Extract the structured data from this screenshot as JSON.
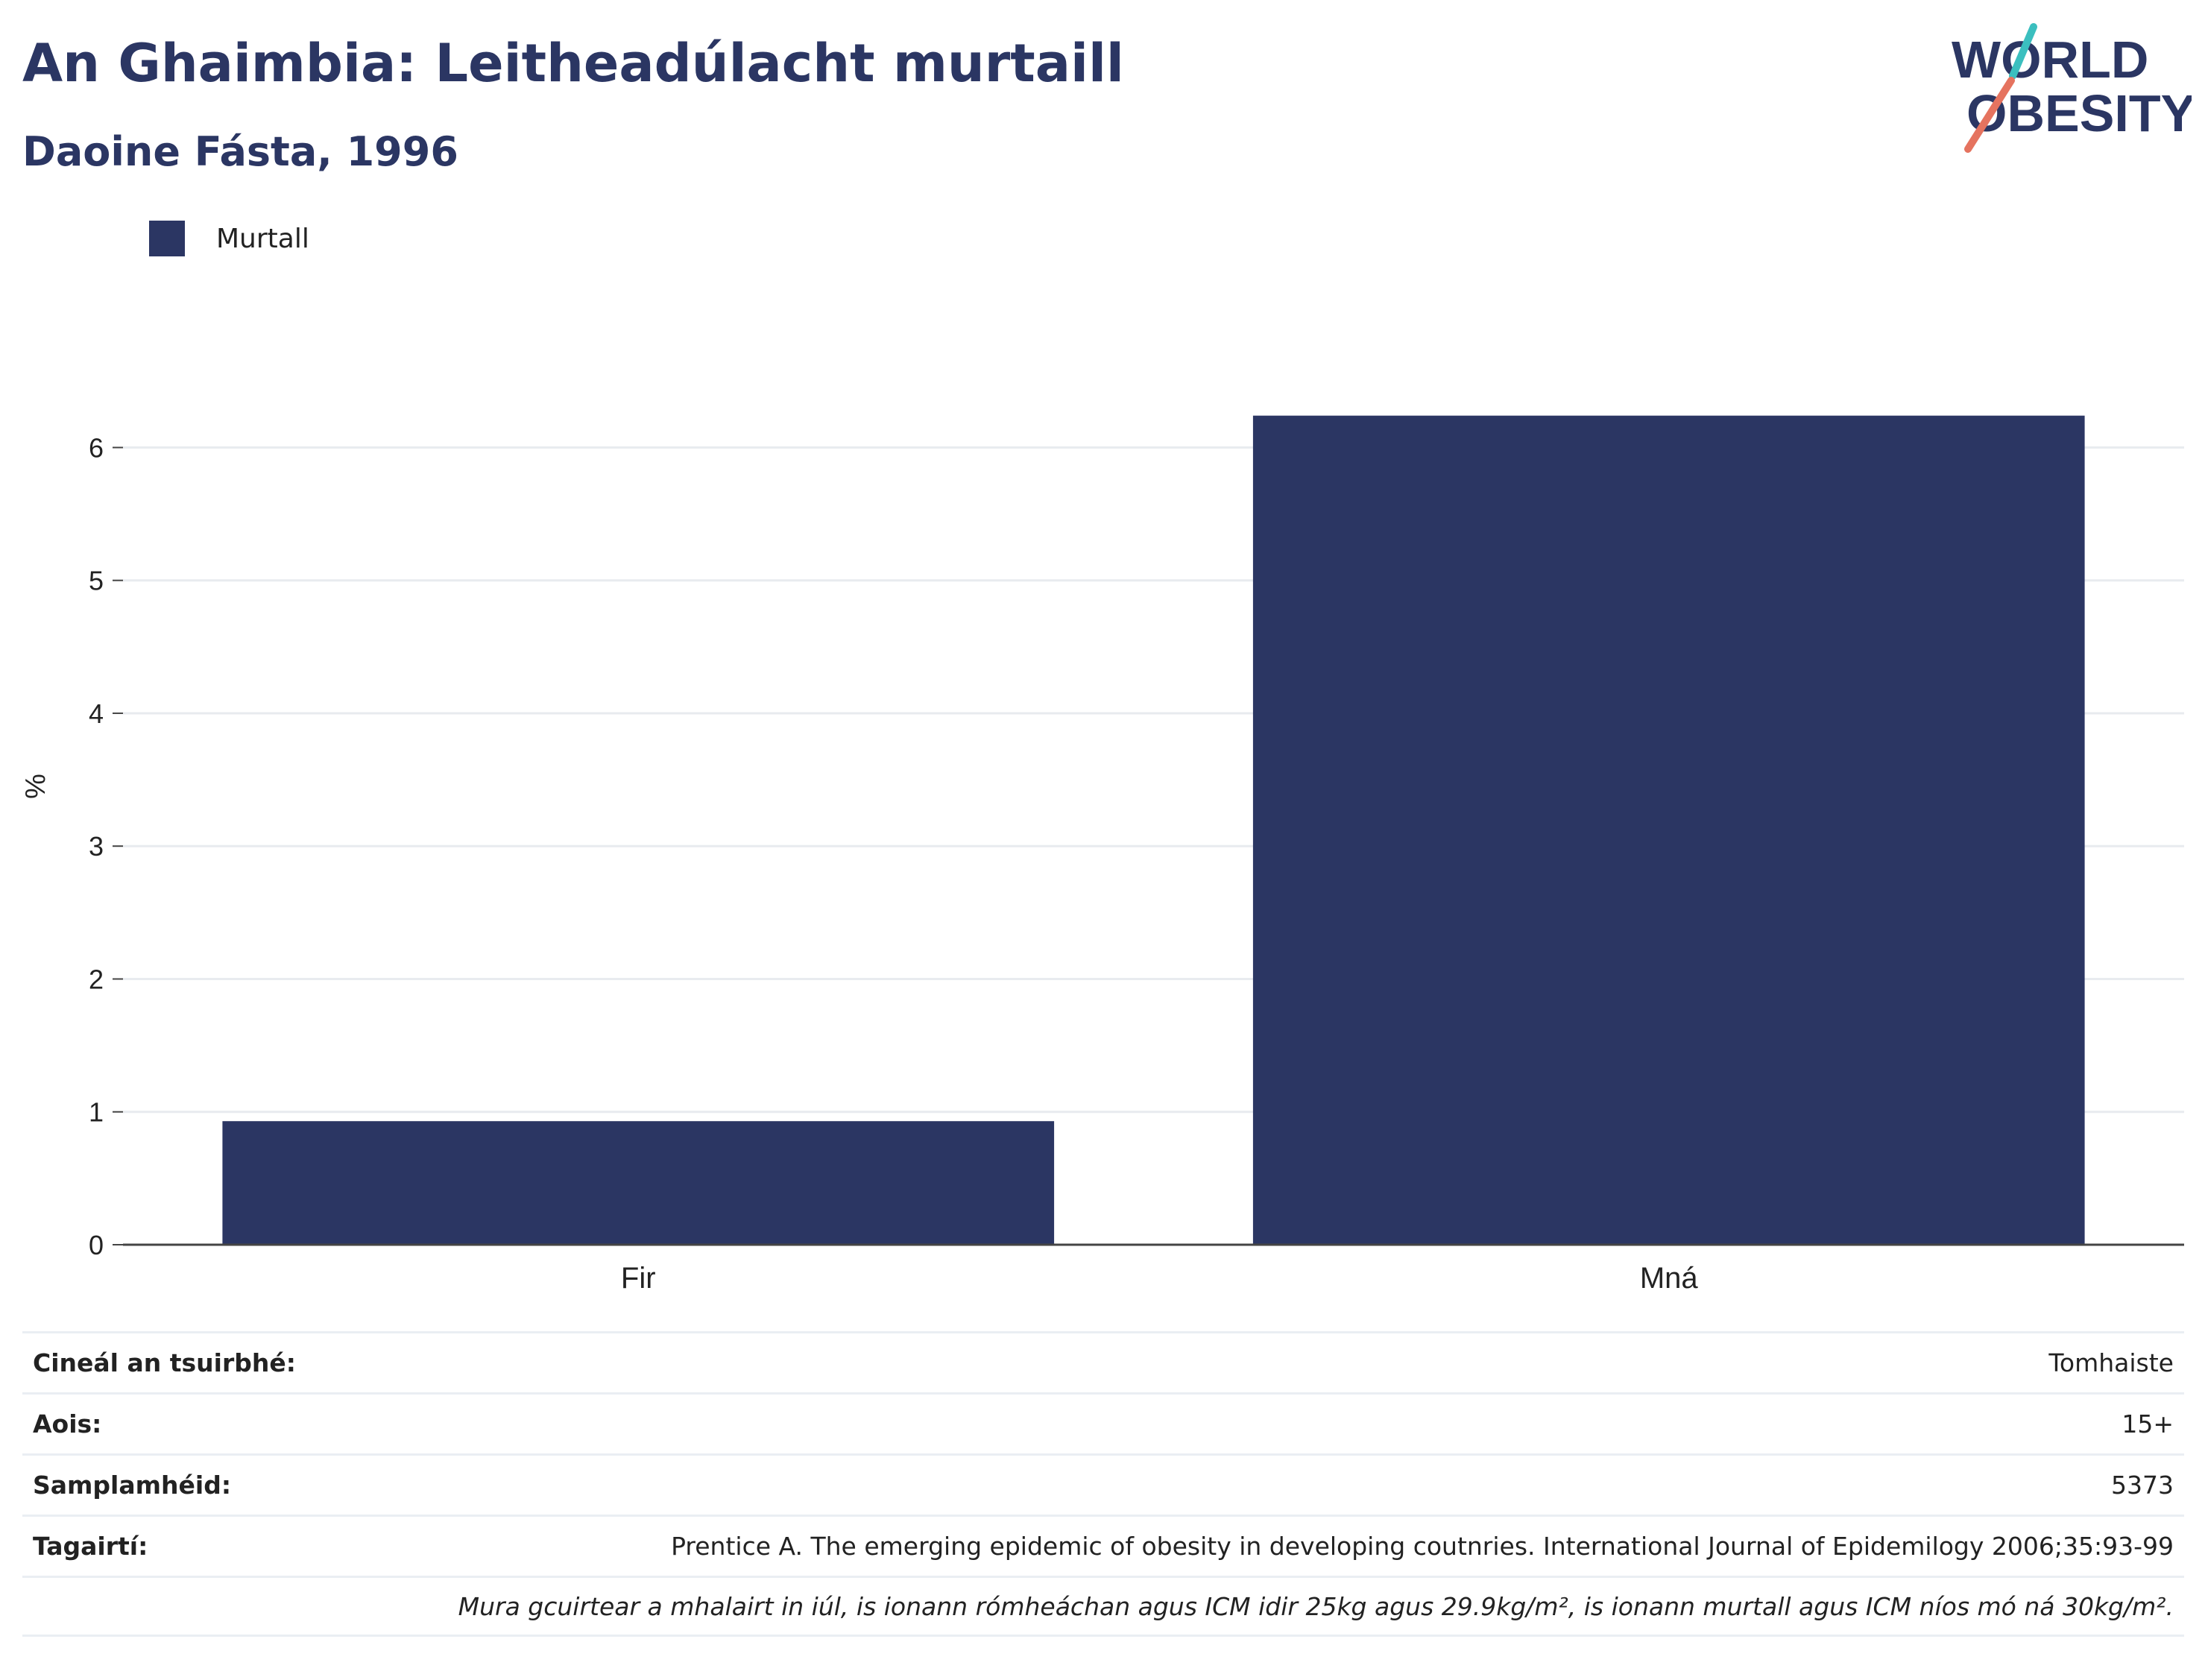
{
  "header": {
    "title": "An Ghaimbia: Leitheadúlacht murtaill",
    "subtitle": "Daoine Fásta, 1996"
  },
  "logo": {
    "line1": "WORLD",
    "line2": "OBESITY",
    "text_color": "#2b3663",
    "slash_top_color": "#3bbfbf",
    "slash_bottom_color": "#e5735f"
  },
  "legend": {
    "label": "Murtall"
  },
  "chart_data": {
    "type": "bar",
    "categories": [
      "Fir",
      "Mná"
    ],
    "series": [
      {
        "name": "Murtall",
        "values": [
          0.93,
          6.24
        ],
        "color": "#2b3663"
      }
    ],
    "ylabel": "%",
    "xlabel": "",
    "ylim": [
      0,
      6.9
    ],
    "yticks": [
      0,
      1,
      2,
      3,
      4,
      5,
      6
    ],
    "grid": true,
    "legend_position": "top-left"
  },
  "info": {
    "rows": [
      {
        "label": "Cineál an tsuirbhé:",
        "value": "Tomhaiste"
      },
      {
        "label": "Aois:",
        "value": "15+"
      },
      {
        "label": "Samplamhéid:",
        "value": "5373"
      },
      {
        "label": "Tagairtí:",
        "value": "Prentice A. The emerging epidemic of obesity in developing coutnries. International Journal of Epidemilogy 2006;35:93-99"
      }
    ],
    "note": "Mura gcuirtear a mhalairt in iúl, is ionann rómheáchan agus ICM idir 25kg agus 29.9kg/m², is ionann murtall agus ICM níos mó ná 30kg/m²."
  }
}
